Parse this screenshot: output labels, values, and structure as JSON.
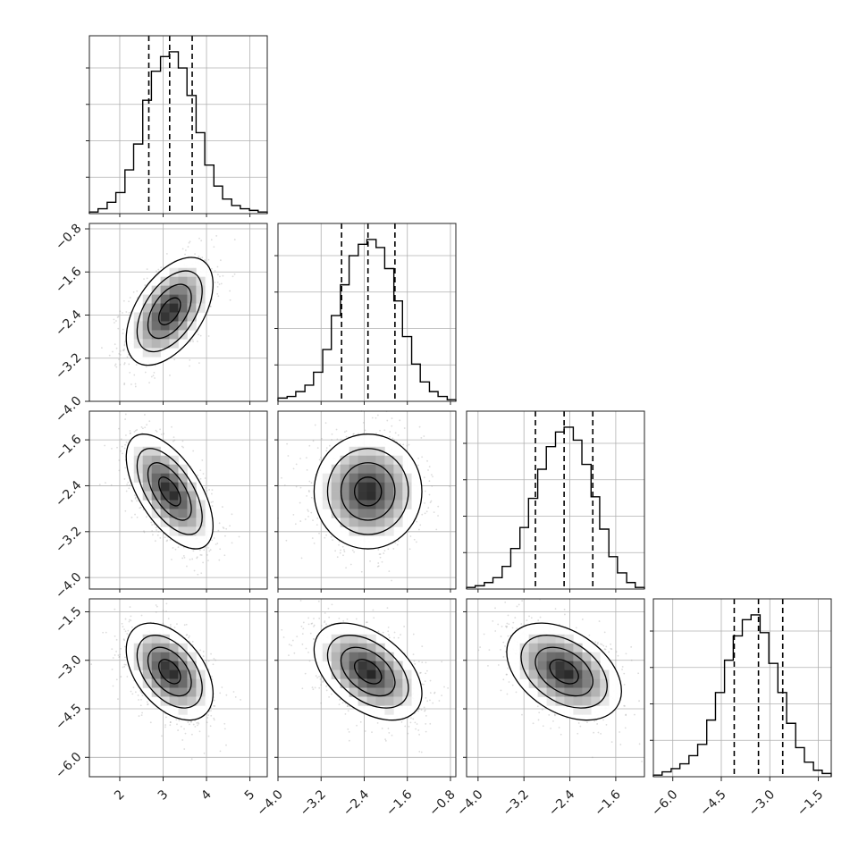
{
  "chart_data": {
    "type": "corner",
    "n_params": 4,
    "grid": true,
    "quantiles": [
      0.16,
      0.5,
      0.84
    ],
    "tick_labels": {
      "x": [
        [
          "2",
          "3",
          "4",
          "5"
        ],
        [
          "−4.0",
          "−3.2",
          "−2.4",
          "−1.6",
          "−0.8"
        ],
        [
          "−4.0",
          "−3.2",
          "−2.4",
          "−1.6"
        ],
        [
          "−6.0",
          "−4.5",
          "−3.0",
          "−1.5"
        ]
      ],
      "y": [
        [],
        [
          "−0.8",
          "−1.6",
          "−2.4",
          "−3.2",
          "−4.0"
        ],
        [
          "−1.6",
          "−2.4",
          "−3.2",
          "−4.0"
        ],
        [
          "−1.5",
          "−3.0",
          "−4.5",
          "−6.0"
        ]
      ]
    },
    "params": [
      {
        "range": [
          1.3,
          5.4
        ],
        "ticks": [
          2,
          3,
          4,
          5
        ],
        "mean": 3.15,
        "sd": 0.5,
        "q16": 2.67,
        "q50": 3.15,
        "q84": 3.67
      },
      {
        "range": [
          -4.0,
          -0.7
        ],
        "ticks": [
          -4.0,
          -3.2,
          -2.4,
          -1.6,
          -0.8
        ],
        "mean": -2.33,
        "sd": 0.5,
        "q16": -2.82,
        "q50": -2.33,
        "q84": -1.83
      },
      {
        "range": [
          -4.2,
          -1.1
        ],
        "ticks": [
          -4.0,
          -3.2,
          -2.4,
          -1.6
        ],
        "mean": -2.5,
        "sd": 0.5,
        "q16": -3.0,
        "q50": -2.5,
        "q84": -2.0
      },
      {
        "range": [
          -6.6,
          -1.1
        ],
        "ticks": [
          -6.0,
          -4.5,
          -3.0,
          -1.5
        ],
        "mean": -3.35,
        "sd": 0.75,
        "q16": -4.1,
        "q50": -3.35,
        "q84": -2.6
      }
    ],
    "correlations": [
      {
        "i": 1,
        "j": 0,
        "rho": 0.5
      },
      {
        "i": 2,
        "j": 0,
        "rho": -0.6
      },
      {
        "i": 3,
        "j": 0,
        "rho": -0.45
      },
      {
        "i": 2,
        "j": 1,
        "rho": 0.0
      },
      {
        "i": 3,
        "j": 1,
        "rho": -0.45
      },
      {
        "i": 3,
        "j": 2,
        "rho": -0.4
      }
    ],
    "histograms": [
      {
        "edges": [
          1.3,
          1.5,
          1.71,
          1.91,
          2.12,
          2.32,
          2.53,
          2.73,
          2.94,
          3.14,
          3.35,
          3.55,
          3.76,
          3.96,
          4.17,
          4.37,
          4.58,
          4.78,
          4.99,
          5.19,
          5.4
        ],
        "counts": [
          0.01,
          0.03,
          0.07,
          0.13,
          0.27,
          0.43,
          0.7,
          0.88,
          0.97,
          1.0,
          0.9,
          0.73,
          0.5,
          0.3,
          0.17,
          0.09,
          0.05,
          0.03,
          0.02,
          0.01
        ]
      },
      {
        "edges": [
          -4.0,
          -3.83,
          -3.67,
          -3.5,
          -3.34,
          -3.17,
          -3.01,
          -2.84,
          -2.68,
          -2.51,
          -2.35,
          -2.18,
          -2.02,
          -1.85,
          -1.69,
          -1.52,
          -1.36,
          -1.19,
          -1.03,
          -0.86,
          -0.7
        ],
        "counts": [
          0.02,
          0.03,
          0.06,
          0.1,
          0.18,
          0.32,
          0.53,
          0.72,
          0.9,
          0.97,
          1.0,
          0.95,
          0.82,
          0.62,
          0.4,
          0.23,
          0.12,
          0.06,
          0.03,
          0.01
        ]
      },
      {
        "edges": [
          -4.2,
          -4.05,
          -3.89,
          -3.74,
          -3.58,
          -3.43,
          -3.27,
          -3.12,
          -2.96,
          -2.81,
          -2.65,
          -2.5,
          -2.34,
          -2.19,
          -2.03,
          -1.88,
          -1.72,
          -1.57,
          -1.41,
          -1.26,
          -1.1
        ],
        "counts": [
          0.01,
          0.02,
          0.04,
          0.07,
          0.14,
          0.25,
          0.38,
          0.56,
          0.74,
          0.88,
          0.97,
          1.0,
          0.92,
          0.77,
          0.57,
          0.37,
          0.2,
          0.1,
          0.04,
          0.01
        ]
      },
      {
        "edges": [
          -6.6,
          -6.33,
          -6.05,
          -5.78,
          -5.5,
          -5.23,
          -4.95,
          -4.68,
          -4.4,
          -4.13,
          -3.85,
          -3.58,
          -3.3,
          -3.03,
          -2.75,
          -2.48,
          -2.2,
          -1.93,
          -1.65,
          -1.38,
          -1.1
        ],
        "counts": [
          0.01,
          0.03,
          0.05,
          0.08,
          0.13,
          0.2,
          0.35,
          0.52,
          0.72,
          0.87,
          0.97,
          1.0,
          0.89,
          0.7,
          0.52,
          0.33,
          0.18,
          0.09,
          0.04,
          0.02
        ]
      }
    ]
  }
}
